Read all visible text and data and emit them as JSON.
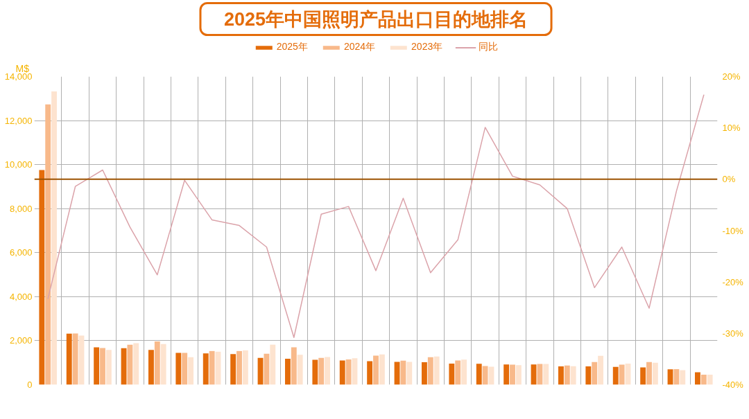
{
  "chart_data": {
    "type": "bar",
    "title": "2025年中国照明产品出口目的地排名",
    "ylabel": "M$",
    "categories": [
      null,
      null,
      null,
      null,
      null,
      null,
      null,
      null,
      null,
      null,
      null,
      null,
      null,
      null,
      null,
      null,
      null,
      null,
      null,
      null,
      null,
      null,
      null,
      null,
      null
    ],
    "series": [
      {
        "name": "2025年",
        "color": "#e46c0a",
        "values": [
          9750,
          2320,
          1700,
          1660,
          1580,
          1450,
          1420,
          1390,
          1220,
          1180,
          1130,
          1100,
          1070,
          1040,
          1020,
          960,
          950,
          920,
          920,
          830,
          830,
          810,
          790,
          700,
          570
        ]
      },
      {
        "name": "2024年",
        "color": "#f8b98a",
        "values": [
          12730,
          2330,
          1670,
          1820,
          1970,
          1450,
          1530,
          1530,
          1410,
          1700,
          1220,
          1150,
          1320,
          1090,
          1250,
          1100,
          850,
          910,
          940,
          870,
          1030,
          910,
          1030,
          710,
          460
        ]
      },
      {
        "name": "2023年",
        "color": "#fde3cf",
        "values": [
          13320,
          2230,
          1580,
          1890,
          1850,
          1250,
          1500,
          1560,
          1820,
          1360,
          1260,
          1200,
          1380,
          1040,
          1280,
          1140,
          820,
          890,
          940,
          840,
          1310,
          960,
          1000,
          660,
          460
        ]
      },
      {
        "name": "同比",
        "type": "line",
        "axis": "y2",
        "color": "#dba3aa",
        "values": [
          -23.2,
          -1.4,
          1.8,
          -9.3,
          -18.6,
          -0.2,
          -7.9,
          -9.0,
          -13.2,
          -30.8,
          -6.8,
          -5.3,
          -17.8,
          -3.7,
          -18.2,
          -11.8,
          10.1,
          0.6,
          -1.1,
          -5.7,
          -21.1,
          -13.2,
          -25.1,
          -2.3,
          16.4
        ]
      }
    ],
    "ylim": [
      0,
      14000
    ],
    "yticks": [
      0,
      {
        "value": 2000,
        "label": "2,000"
      },
      {
        "value": 4000,
        "label": "4,000"
      },
      {
        "value": 6000,
        "label": "6,000"
      },
      {
        "value": 8000,
        "label": "8,000"
      },
      {
        "value": 10000,
        "label": "10,000"
      },
      {
        "value": 12000,
        "label": "12,000"
      },
      {
        "value": 14000,
        "label": "14,000"
      }
    ],
    "y2lim": [
      -40,
      20
    ],
    "y2ticks": [
      {
        "value": -40,
        "label": "-40%"
      },
      {
        "value": -30,
        "label": "-30%"
      },
      {
        "value": -20,
        "label": "-20%"
      },
      {
        "value": -10,
        "label": "-10%"
      },
      {
        "value": 0,
        "label": "0%"
      },
      {
        "value": 10,
        "label": "10%"
      },
      {
        "value": 20,
        "label": "20%"
      }
    ],
    "ref_lines": [
      {
        "axis": "y2",
        "value": 0,
        "color": "#9c5200"
      }
    ],
    "grid": true,
    "legend": "top"
  }
}
